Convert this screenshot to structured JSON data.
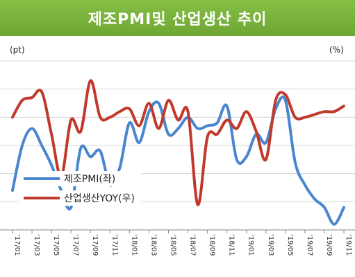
{
  "chart_data": {
    "type": "line",
    "title": "제조PMI및 산업생산 추이",
    "left_unit": "(pt)",
    "right_unit": "(%)",
    "x_ticks": [
      "'17/01",
      "'17/03",
      "'17/05",
      "'17/07",
      "'17/09",
      "'17/11",
      "'18/01",
      "'18/03",
      "'18/05",
      "'18/07",
      "'18/09",
      "'18/11",
      "'19/01",
      "'19/03",
      "'19/05",
      "'19/07",
      "'19/09",
      "'19/11"
    ],
    "grid": true,
    "legend_position": "center-left",
    "series": [
      {
        "name": "제조PMI(좌)",
        "axis": "left",
        "color": "#4a86cf",
        "values": [
          [
            "2017-01",
            1.4
          ],
          [
            "2017-02",
            3.0
          ],
          [
            "2017-03",
            3.6
          ],
          [
            "2017-04",
            3.0
          ],
          [
            "2017-05",
            2.3
          ],
          [
            "2017-06",
            1.4
          ],
          [
            "2017-07",
            0.8
          ],
          [
            "2017-08",
            2.9
          ],
          [
            "2017-09",
            2.6
          ],
          [
            "2017-10",
            2.8
          ],
          [
            "2017-11",
            1.6
          ],
          [
            "2017-12",
            2.2
          ],
          [
            "2018-01",
            3.8
          ],
          [
            "2018-02",
            3.1
          ],
          [
            "2018-03",
            4.2
          ],
          [
            "2018-04",
            4.5
          ],
          [
            "2018-05",
            3.4
          ],
          [
            "2018-06",
            3.6
          ],
          [
            "2018-07",
            4.0
          ],
          [
            "2018-08",
            3.6
          ],
          [
            "2018-09",
            3.7
          ],
          [
            "2018-10",
            3.8
          ],
          [
            "2018-11",
            4.4
          ],
          [
            "2018-12",
            2.5
          ],
          [
            "2019-01",
            2.6
          ],
          [
            "2019-02",
            3.4
          ],
          [
            "2019-03",
            3.1
          ],
          [
            "2019-04",
            4.3
          ],
          [
            "2019-05",
            4.6
          ],
          [
            "2019-06",
            2.4
          ],
          [
            "2019-07",
            1.6
          ],
          [
            "2019-08",
            1.1
          ],
          [
            "2019-09",
            0.8
          ],
          [
            "2019-10",
            0.2
          ],
          [
            "2019-11",
            0.8
          ]
        ]
      },
      {
        "name": "산업생산YOY(우)",
        "axis": "right",
        "color": "#c0392b",
        "values": [
          [
            "2017-01",
            4.0
          ],
          [
            "2017-02",
            4.6
          ],
          [
            "2017-03",
            4.7
          ],
          [
            "2017-04",
            4.9
          ],
          [
            "2017-05",
            3.4
          ],
          [
            "2017-06",
            1.9
          ],
          [
            "2017-07",
            3.9
          ],
          [
            "2017-08",
            3.5
          ],
          [
            "2017-09",
            5.3
          ],
          [
            "2017-10",
            4.0
          ],
          [
            "2017-11",
            4.0
          ],
          [
            "2017-12",
            4.2
          ],
          [
            "2018-01",
            4.3
          ],
          [
            "2018-02",
            3.7
          ],
          [
            "2018-03",
            4.5
          ],
          [
            "2018-04",
            3.6
          ],
          [
            "2018-05",
            4.6
          ],
          [
            "2018-06",
            3.9
          ],
          [
            "2018-07",
            4.2
          ],
          [
            "2018-08",
            0.9
          ],
          [
            "2018-09",
            3.3
          ],
          [
            "2018-10",
            3.4
          ],
          [
            "2018-11",
            3.9
          ],
          [
            "2018-12",
            3.6
          ],
          [
            "2019-01",
            4.2
          ],
          [
            "2019-02",
            3.5
          ],
          [
            "2019-03",
            2.5
          ],
          [
            "2019-04",
            4.6
          ],
          [
            "2019-05",
            4.8
          ],
          [
            "2019-06",
            4.0
          ],
          [
            "2019-07",
            4.0
          ],
          [
            "2019-08",
            4.1
          ],
          [
            "2019-09",
            4.2
          ],
          [
            "2019-10",
            4.2
          ],
          [
            "2019-11",
            4.4
          ]
        ]
      }
    ]
  }
}
